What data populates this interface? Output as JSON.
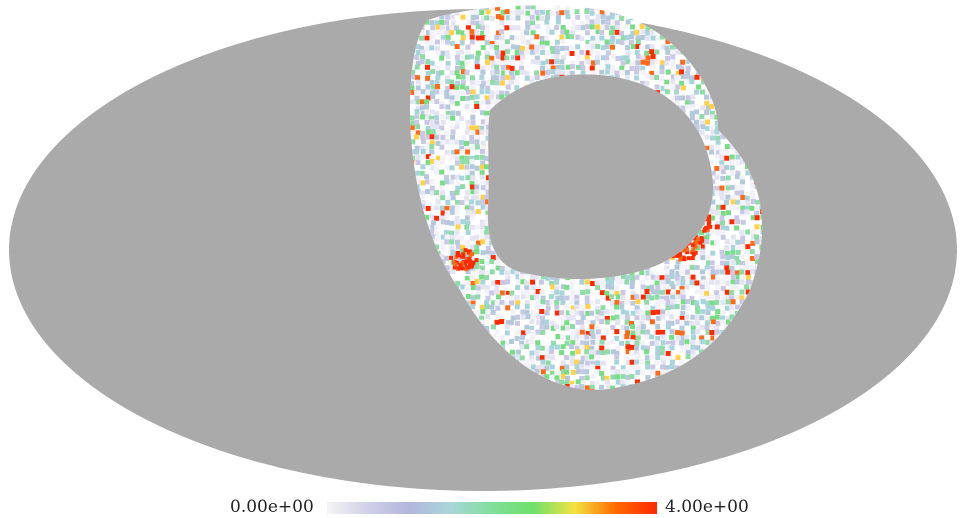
{
  "colorbar": {
    "min_label": "0.00e+00",
    "max_label": "4.00e+00",
    "min_value": 0,
    "max_value": 4,
    "colors": [
      "#f5f5f5",
      "#cfcfe8",
      "#b3b6dc",
      "#a9d6da",
      "#80de9a",
      "#6ee06a",
      "#f4e342",
      "#ff6a00",
      "#ff2a00"
    ]
  },
  "map": {
    "projection": "mollweide",
    "background_color": "#ffffff",
    "masked_color": "#aaaaaa",
    "pixel_colors": [
      "#ffffff",
      "#f2f2f8",
      "#e4e4f2",
      "#c9c9e6",
      "#b5c9dc",
      "#a8d5dc",
      "#90dca8",
      "#78de86",
      "#ffd24a",
      "#ff6a1a",
      "#ff2a00"
    ],
    "pixel_color_weights": [
      26,
      14,
      10,
      9,
      8,
      8,
      6,
      5,
      2,
      2,
      3
    ]
  }
}
